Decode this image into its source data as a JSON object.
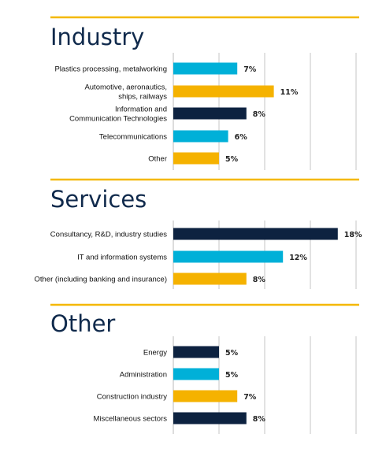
{
  "colors": {
    "dark": "#0d2240",
    "cyan": "#00b0d8",
    "gold": "#f5b200",
    "rule": "#f4b800"
  },
  "chart_data": [
    {
      "type": "bar",
      "orientation": "horizontal",
      "title": "Industry",
      "xlim": [
        0,
        20
      ],
      "grid": true,
      "categories": [
        "Plastics processing, metalworking",
        "Automotive, aeronautics,\nships, railways",
        "Information and\nCommunication Technologies",
        "Telecommunications",
        "Other"
      ],
      "values": [
        7,
        11,
        8,
        6,
        5
      ],
      "value_labels": [
        "7%",
        "11%",
        "8%",
        "6%",
        "5%"
      ],
      "bar_colors": [
        "cyan",
        "gold",
        "dark",
        "cyan",
        "gold"
      ]
    },
    {
      "type": "bar",
      "orientation": "horizontal",
      "title": "Services",
      "xlim": [
        0,
        20
      ],
      "grid": true,
      "categories": [
        "Consultancy, R&D, industry studies",
        "IT and information systems",
        "Other (including banking and insurance)"
      ],
      "values": [
        18,
        12,
        8
      ],
      "value_labels": [
        "18%",
        "12%",
        "8%"
      ],
      "bar_colors": [
        "dark",
        "cyan",
        "gold"
      ]
    },
    {
      "type": "bar",
      "orientation": "horizontal",
      "title": "Other",
      "xlim": [
        0,
        20
      ],
      "grid": true,
      "categories": [
        "Energy",
        "Administration",
        "Construction industry",
        "Miscellaneous sectors"
      ],
      "values": [
        5,
        5,
        7,
        8
      ],
      "value_labels": [
        "5%",
        "5%",
        "7%",
        "8%"
      ],
      "bar_colors": [
        "dark",
        "cyan",
        "gold",
        "dark"
      ]
    }
  ]
}
